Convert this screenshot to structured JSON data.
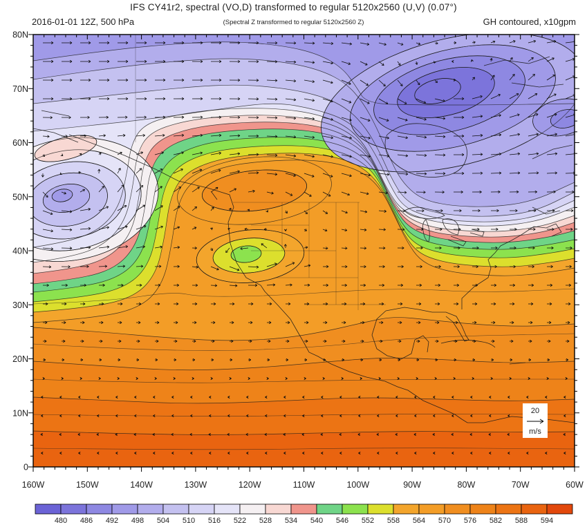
{
  "header": {
    "title": "IFS CY41r2, spectral (VO,D) transformed to regular 5120x2560 (U,V) (0.07°)",
    "subtitle_left": "2016-01-01 12Z, 500 hPa",
    "subtitle_center": "(Spectral Z transformed to regular 5120x2560 Z)",
    "subtitle_right": "GH contoured, x10gpm"
  },
  "chart_data": {
    "type": "heatmap",
    "subtype": "filled-contour-map-with-wind-vectors",
    "title": "IFS CY41r2, spectral (VO,D) transformed to regular 5120x2560 (U,V) (0.07°)",
    "valid_time": "2016-01-01 12Z",
    "level": "500 hPa",
    "field_fill": "Geopotential height (GH contoured, x10gpm)",
    "field_vector": "Wind (m/s)",
    "map_extent": {
      "lon_min": "160W",
      "lon_max": "60W",
      "lat_min": "0",
      "lat_max": "80N"
    },
    "x_ticks": [
      "160W",
      "150W",
      "140W",
      "130W",
      "120W",
      "110W",
      "100W",
      "90W",
      "80W",
      "70W",
      "60W"
    ],
    "y_ticks": [
      "0",
      "10N",
      "20N",
      "30N",
      "40N",
      "50N",
      "60N",
      "70N",
      "80N"
    ],
    "grid": false,
    "colorbar": {
      "levels": [
        480,
        486,
        492,
        498,
        504,
        510,
        516,
        522,
        528,
        534,
        540,
        546,
        552,
        558,
        564,
        570,
        576,
        582,
        588,
        594
      ],
      "colors": [
        "#6b63d6",
        "#7c74db",
        "#8e88e2",
        "#a09ae8",
        "#b2adec",
        "#c4c1f0",
        "#d6d4f5",
        "#e5e4f8",
        "#f5f0f2",
        "#f8d8d3",
        "#f0958c",
        "#6fd487",
        "#8ce24e",
        "#dcdf2d",
        "#f3a52c",
        "#f39d27",
        "#f08e20",
        "#ee8319",
        "#ec7414",
        "#e96410",
        "#e2480c"
      ],
      "position": "bottom"
    },
    "wind_reference": {
      "value": "20",
      "unit": "m/s"
    },
    "features": [
      {
        "type": "low",
        "center": "~69N 79W",
        "approx_min_gpm": 486,
        "note": "deep closed low over NE Canada / Hudson Bay"
      },
      {
        "type": "low",
        "center": "~50N 153W",
        "approx_min_gpm": 500,
        "note": "closed low over Gulf of Alaska"
      },
      {
        "type": "high",
        "center": "~52N 119W",
        "approx_max_gpm": 574,
        "note": "ridge over western North America"
      },
      {
        "type": "low",
        "center": "~39N 120W",
        "approx_min_gpm": 544,
        "note": "small cutoff low near California/Nevada"
      },
      {
        "type": "gradient",
        "note": "heights increase southward, 588-594+ gpm across the tropics"
      }
    ]
  }
}
